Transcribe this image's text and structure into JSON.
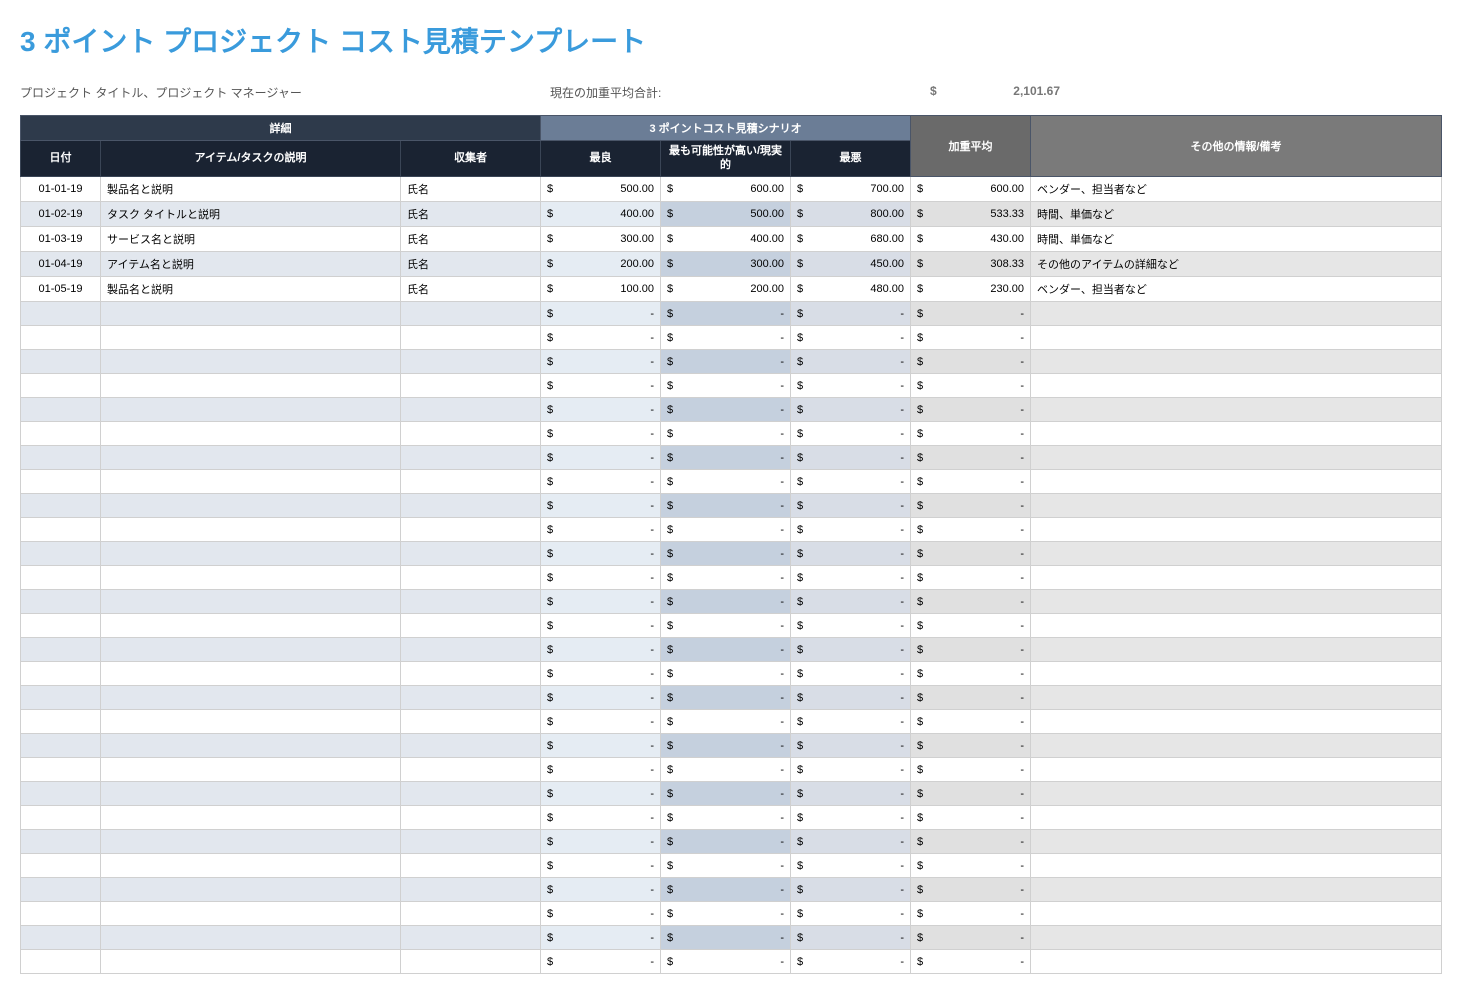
{
  "title": "3 ポイント プロジェクト コスト見積テンプレート",
  "meta": {
    "project_label": "プロジェクト タイトル、プロジェクト マネージャー",
    "total_label": "現在の加重平均合計:",
    "currency": "$",
    "total_value": "2,101.67"
  },
  "table": {
    "group_headers": {
      "detail": "詳細",
      "scenario": "3 ポイントコスト見積シナリオ",
      "avg": "加重平均",
      "notes": "その他の情報/備考"
    },
    "sub_headers": {
      "date": "日付",
      "desc": "アイテム/タスクの説明",
      "collector": "収集者",
      "best": "最良",
      "likely": "最も可能性が高い/現実的",
      "worst": "最悪",
      "avg": "",
      "notes": ""
    },
    "colors": {
      "detail_header_bg": "#2e3a4b",
      "scenario_header_bg": "#6b7d96",
      "avg_header_bg": "#6a6a6a",
      "notes_header_bg": "#7a7a7a",
      "sub_header_bg": "#1a2332",
      "row_even_bg": "#ffffff",
      "row_odd_bg": "#e2e7ee",
      "scenario_odd_best_bg": "#e5ecf3",
      "scenario_odd_likely_bg": "#c5d0de",
      "scenario_odd_worst_bg": "#d8dde6",
      "avg_odd_bg": "#e0e0e0",
      "notes_odd_bg": "#e6e6e6",
      "border": "#d0d0d0",
      "title_color": "#3a9bdc"
    },
    "col_widths": {
      "date": 80,
      "desc": 300,
      "collector": 140,
      "best": 120,
      "likely": 130,
      "worst": 120,
      "avg": 120
    },
    "rows": [
      {
        "date": "01-01-19",
        "desc": "製品名と説明",
        "collector": "氏名",
        "best": "500.00",
        "likely": "600.00",
        "worst": "700.00",
        "avg": "600.00",
        "notes": "ベンダー、担当者など"
      },
      {
        "date": "01-02-19",
        "desc": "タスク タイトルと説明",
        "collector": "氏名",
        "best": "400.00",
        "likely": "500.00",
        "worst": "800.00",
        "avg": "533.33",
        "notes": "時間、単価など"
      },
      {
        "date": "01-03-19",
        "desc": "サービス名と説明",
        "collector": "氏名",
        "best": "300.00",
        "likely": "400.00",
        "worst": "680.00",
        "avg": "430.00",
        "notes": "時間、単価など"
      },
      {
        "date": "01-04-19",
        "desc": "アイテム名と説明",
        "collector": "氏名",
        "best": "200.00",
        "likely": "300.00",
        "worst": "450.00",
        "avg": "308.33",
        "notes": "その他のアイテムの詳細など"
      },
      {
        "date": "01-05-19",
        "desc": "製品名と説明",
        "collector": "氏名",
        "best": "100.00",
        "likely": "200.00",
        "worst": "480.00",
        "avg": "230.00",
        "notes": "ベンダー、担当者など"
      }
    ],
    "empty_row_count": 28,
    "empty_placeholder": "-",
    "currency_symbol": "$"
  }
}
